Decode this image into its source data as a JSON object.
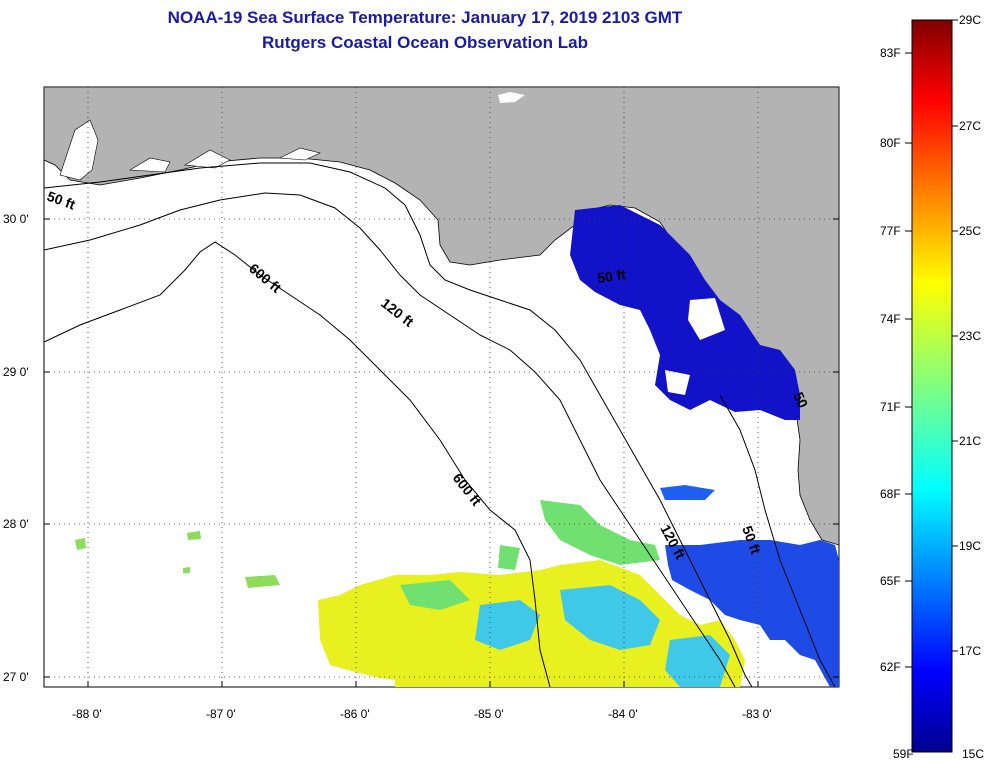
{
  "title": "NOAA-19 Sea Surface Temperature:  January 17, 2019 2103 GMT",
  "subtitle": "Rutgers Coastal Ocean Observation Lab",
  "lat_labels": [
    "30 0'",
    "29 0'",
    "28 0'",
    "27 0'"
  ],
  "lon_labels": [
    "-88 0'",
    "-87 0'",
    "-86 0'",
    "-85 0'",
    "-84 0'",
    "-83 0'"
  ],
  "contour_labels": [
    "50 ft",
    "600 ft",
    "120 ft",
    "50 ft",
    "600 ft",
    "120 ft",
    "50 ft",
    "50"
  ],
  "colorbar": {
    "f_labels": [
      "83F",
      "80F",
      "77F",
      "74F",
      "71F",
      "68F",
      "65F",
      "62F",
      "59F"
    ],
    "c_labels": [
      "29C",
      "27C",
      "25C",
      "23C",
      "21C",
      "19C",
      "17C",
      "15C"
    ]
  },
  "colors": {
    "land": "#b3b3b3",
    "ocean": "#ffffff",
    "title": "#1a1aa8"
  }
}
